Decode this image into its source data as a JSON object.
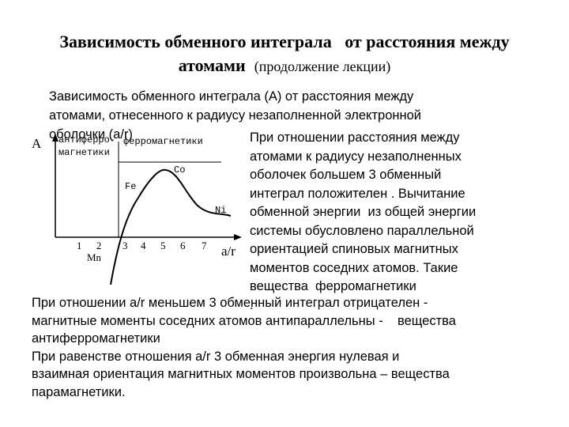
{
  "header": {
    "title_main_1": "Зависимость обменного интеграла   от расстояния между",
    "title_main_2": "атомами",
    "title_sub": "(продолжение лекции)"
  },
  "intro": {
    "lines": [
      "Зависимость обменного интеграла (А) от расстояния между",
      "атомами, отнесенного к радиусу незаполненной электронной",
      "оболочки (a/r)"
    ]
  },
  "figure": {
    "y_label": "A",
    "x_label": "a/r",
    "region_left": [
      "антиферро-",
      "магнетики"
    ],
    "region_right": "ферромагнетики",
    "x_ticks": [
      "1",
      "2",
      "3",
      "4",
      "5",
      "6",
      "7"
    ],
    "mn_label": "Mn",
    "fe_label": "Fe",
    "co_label": "Co",
    "ni_label": "Ni"
  },
  "right_text": {
    "lines": [
      "При отношении расстояния между",
      "атомами к радиусу незаполненных",
      "оболочек большем 3 обменный",
      "интеграл положителен . Вычитание",
      "обменной энергии  из общей энергии",
      "системы обусловлено параллельной",
      "ориентацией спиновых магнитных",
      "моментов соседних атомов. Такие",
      "вещества  ферромагнетики",
      "."
    ]
  },
  "bottom_text": {
    "lines": [
      "При отношении a/r меньшем 3 обменный интеграл отрицателен -",
      "магнитные моменты соседних атомов антипараллельны -    вещества",
      "антиферромагнетики",
      "При равенстве отношения a/r 3 обменная энергия нулевая и",
      "взаимная ориентация магнитных моментов произвольна – вещества",
      "парамагнетики."
    ]
  }
}
